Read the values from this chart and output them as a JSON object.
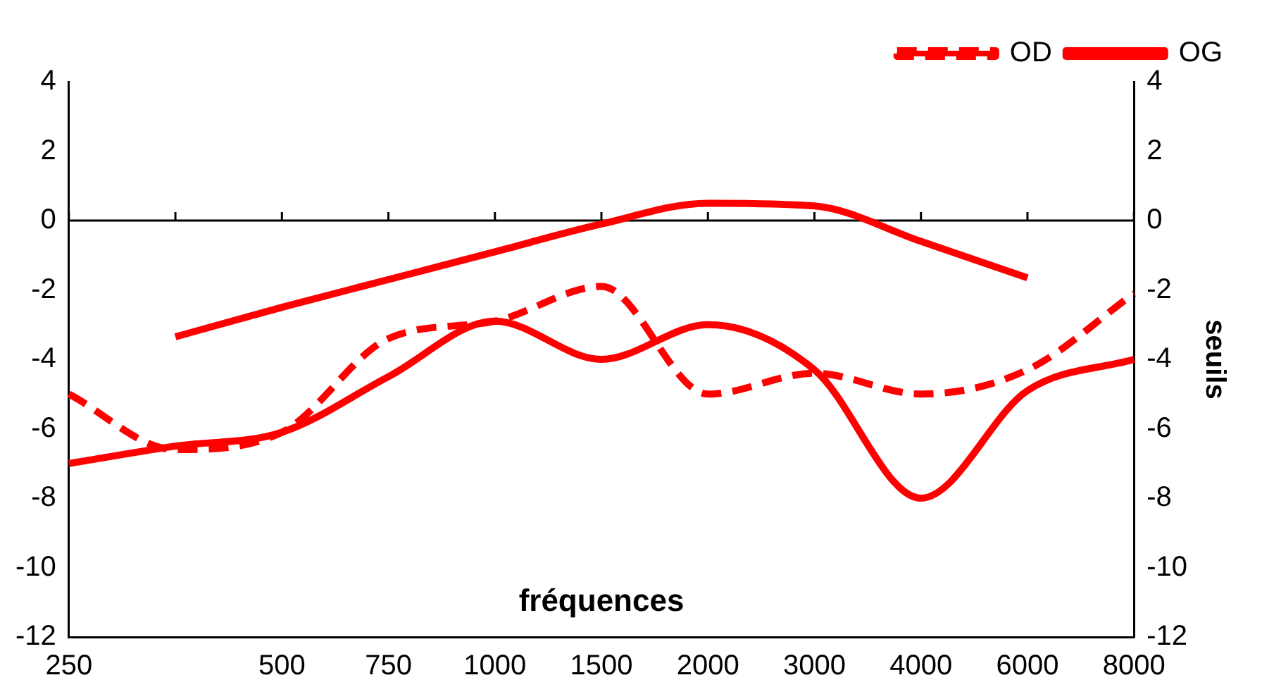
{
  "chart_data": {
    "type": "line",
    "xlabel": "fréquences",
    "y2label": "seuils",
    "categories": [
      "250",
      null,
      "500",
      "750",
      "1000",
      "1500",
      "2000",
      "3000",
      "4000",
      "6000",
      "8000"
    ],
    "series": [
      {
        "name": "OD",
        "color": "#ff0000",
        "line_style": "dashed",
        "values": [
          -5.0,
          -6.6,
          -6.1,
          -3.4,
          -2.9,
          -1.9,
          -5.0,
          -4.4,
          -5.0,
          -4.3,
          -2.1
        ]
      },
      {
        "name": "OG",
        "color": "#ff0000",
        "line_style": "solid",
        "values": [
          -7.0,
          -6.5,
          -6.1,
          -4.5,
          -2.9,
          -4.0,
          -3.0,
          -4.3,
          -8.0,
          -4.9,
          -4.0
        ]
      },
      {
        "color": "#ff0000",
        "line_style": "solid",
        "values": [
          null,
          -3.35,
          -2.5,
          -1.7,
          -0.9,
          -0.1,
          0.5,
          0.42,
          -0.6,
          -1.65,
          null
        ]
      }
    ],
    "ylim": [
      -12,
      4
    ],
    "yticks": [
      -12,
      -10,
      -8,
      -6,
      -4,
      -2,
      0,
      2,
      4
    ],
    "y2lim": [
      -12,
      4
    ],
    "y2ticks": [
      -12,
      -10,
      -8,
      -6,
      -4,
      -2,
      0,
      2,
      4
    ],
    "ref_lines": [
      {
        "axis": "y",
        "value": 0,
        "color": "#000000",
        "line_style": "solid"
      }
    ],
    "grid": false,
    "legend": "top right",
    "marker": "none"
  }
}
